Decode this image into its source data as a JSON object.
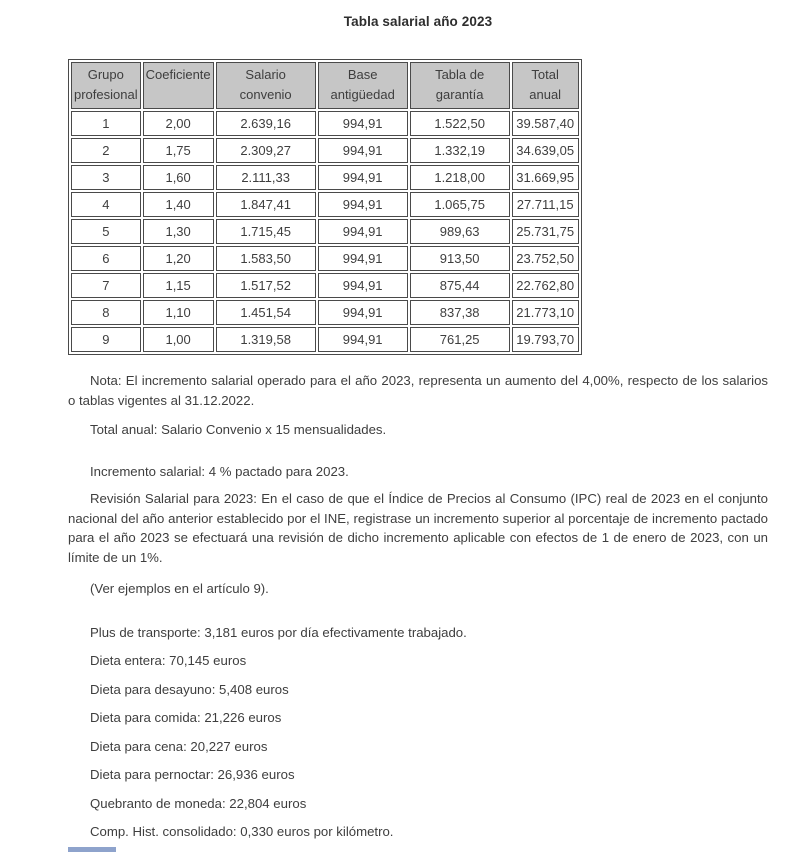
{
  "page": {
    "title": "Tabla salarial año 2023"
  },
  "colors": {
    "header_bg": "#c6c6c6",
    "table_border": "#4a4a4a",
    "text": "#3e3e3e",
    "fragment_blue": "#8ea3cc"
  },
  "table": {
    "headers": [
      "Grupo\nprofesional",
      "Coeficiente",
      "Salario\nconvenio",
      "Base\nantigüedad",
      "Tabla de\ngarantía",
      "Total\nanual"
    ],
    "rows": [
      [
        "1",
        "2,00",
        "2.639,16",
        "994,91",
        "1.522,50",
        "39.587,40"
      ],
      [
        "2",
        "1,75",
        "2.309,27",
        "994,91",
        "1.332,19",
        "34.639,05"
      ],
      [
        "3",
        "1,60",
        "2.111,33",
        "994,91",
        "1.218,00",
        "31.669,95"
      ],
      [
        "4",
        "1,40",
        "1.847,41",
        "994,91",
        "1.065,75",
        "27.711,15"
      ],
      [
        "5",
        "1,30",
        "1.715,45",
        "994,91",
        "989,63",
        "25.731,75"
      ],
      [
        "6",
        "1,20",
        "1.583,50",
        "994,91",
        "913,50",
        "23.752,50"
      ],
      [
        "7",
        "1,15",
        "1.517,52",
        "994,91",
        "875,44",
        "22.762,80"
      ],
      [
        "8",
        "1,10",
        "1.451,54",
        "994,91",
        "837,38",
        "21.773,10"
      ],
      [
        "9",
        "1,00",
        "1.319,58",
        "994,91",
        "761,25",
        "19.793,70"
      ]
    ]
  },
  "notes": {
    "nota": "Nota: El incremento salarial operado para el año 2023, representa un aumento del 4,00%, respecto de los salarios o tablas vigentes al 31.12.2022.",
    "total_anual": "Total anual: Salario Convenio x 15 mensualidades.",
    "incremento": "Incremento salarial: 4 % pactado para 2023.",
    "revision": "Revisión Salarial para 2023: En el caso de que el Índice de Precios al Consumo (IPC) real de 2023 en el conjunto nacional del año anterior establecido por el INE, registrase un incremento superior al porcentaje de incremento pactado para el año 2023 se efectuará una revisión de dicho incremento aplicable con efectos de 1 de enero de 2023, con un límite de un 1%.",
    "ver_ejemplos": "(Ver ejemplos en el artículo 9).",
    "items": [
      "Plus de transporte: 3,181 euros por día efectivamente trabajado.",
      "Dieta entera: 70,145 euros",
      "Dieta para desayuno: 5,408 euros",
      "Dieta para comida: 21,226 euros",
      "Dieta para cena: 20,227 euros",
      "Dieta para pernoctar: 26,936 euros",
      "Quebranto de moneda: 22,804 euros",
      "Comp. Hist. consolidado: 0,330 euros por kilómetro."
    ]
  }
}
